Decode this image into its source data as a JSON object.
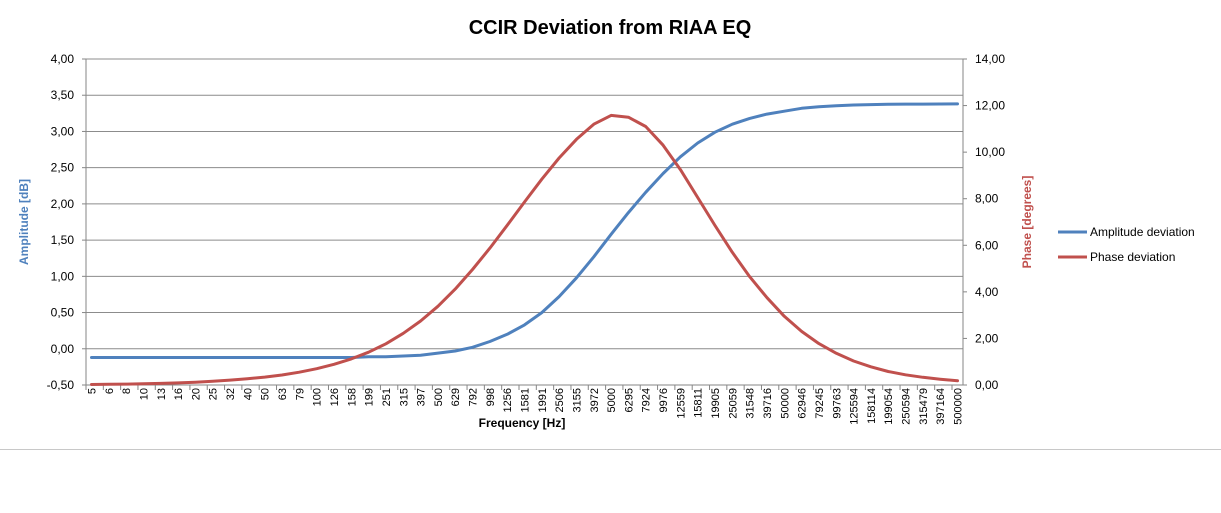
{
  "chart_data": {
    "type": "line",
    "title": "CCIR Deviation from RIAA EQ",
    "xlabel": "Frequency [Hz]",
    "ylabel_left": "Amplitude [dB]",
    "ylabel_right": "Phase [degrees]",
    "ylim_left": [
      -0.5,
      4.0
    ],
    "ylim_right": [
      0,
      14
    ],
    "y_ticks_left": [
      "-0,50",
      "0,00",
      "0,50",
      "1,00",
      "1,50",
      "2,00",
      "2,50",
      "3,00",
      "3,50",
      "4,00"
    ],
    "y_ticks_right": [
      "0,00",
      "2,00",
      "4,00",
      "6,00",
      "8,00",
      "10,00",
      "12,00",
      "14,00"
    ],
    "x_scale": "log",
    "x_tick_labels": [
      "5",
      "6",
      "8",
      "10",
      "13",
      "16",
      "20",
      "25",
      "32",
      "40",
      "50",
      "63",
      "79",
      "100",
      "126",
      "158",
      "199",
      "251",
      "315",
      "397",
      "500",
      "629",
      "792",
      "998",
      "1256",
      "1581",
      "1991",
      "2506",
      "3155",
      "3972",
      "5000",
      "6295",
      "7924",
      "9976",
      "12559",
      "15811",
      "19905",
      "25059",
      "31548",
      "39716",
      "50000",
      "62946",
      "79245",
      "99763",
      "125594",
      "158114",
      "199054",
      "250594",
      "315479",
      "397164",
      "500000"
    ],
    "grid": "horizontal",
    "legend_position": "right",
    "series": [
      {
        "name": "Amplitude deviation",
        "axis": "left",
        "color": "#4f81bd",
        "values": [
          -0.12,
          -0.12,
          -0.12,
          -0.12,
          -0.12,
          -0.12,
          -0.12,
          -0.12,
          -0.12,
          -0.12,
          -0.12,
          -0.12,
          -0.12,
          -0.12,
          -0.12,
          -0.12,
          -0.11,
          -0.11,
          -0.1,
          -0.09,
          -0.06,
          -0.03,
          0.02,
          0.1,
          0.2,
          0.33,
          0.5,
          0.72,
          0.98,
          1.27,
          1.58,
          1.88,
          2.16,
          2.42,
          2.65,
          2.84,
          2.99,
          3.1,
          3.18,
          3.24,
          3.28,
          3.32,
          3.34,
          3.355,
          3.365,
          3.37,
          3.375,
          3.377,
          3.378,
          3.379,
          3.38
        ]
      },
      {
        "name": "Phase deviation",
        "axis": "right",
        "color": "#c0504d",
        "values": [
          0.02,
          0.03,
          0.04,
          0.05,
          0.07,
          0.09,
          0.12,
          0.16,
          0.21,
          0.27,
          0.34,
          0.43,
          0.55,
          0.7,
          0.89,
          1.12,
          1.41,
          1.77,
          2.22,
          2.75,
          3.38,
          4.12,
          4.96,
          5.88,
          6.86,
          7.86,
          8.84,
          9.75,
          10.55,
          11.2,
          11.58,
          11.5,
          11.1,
          10.3,
          9.25,
          8.05,
          6.85,
          5.7,
          4.65,
          3.75,
          2.95,
          2.3,
          1.78,
          1.36,
          1.03,
          0.78,
          0.58,
          0.44,
          0.33,
          0.25,
          0.18
        ]
      }
    ]
  }
}
